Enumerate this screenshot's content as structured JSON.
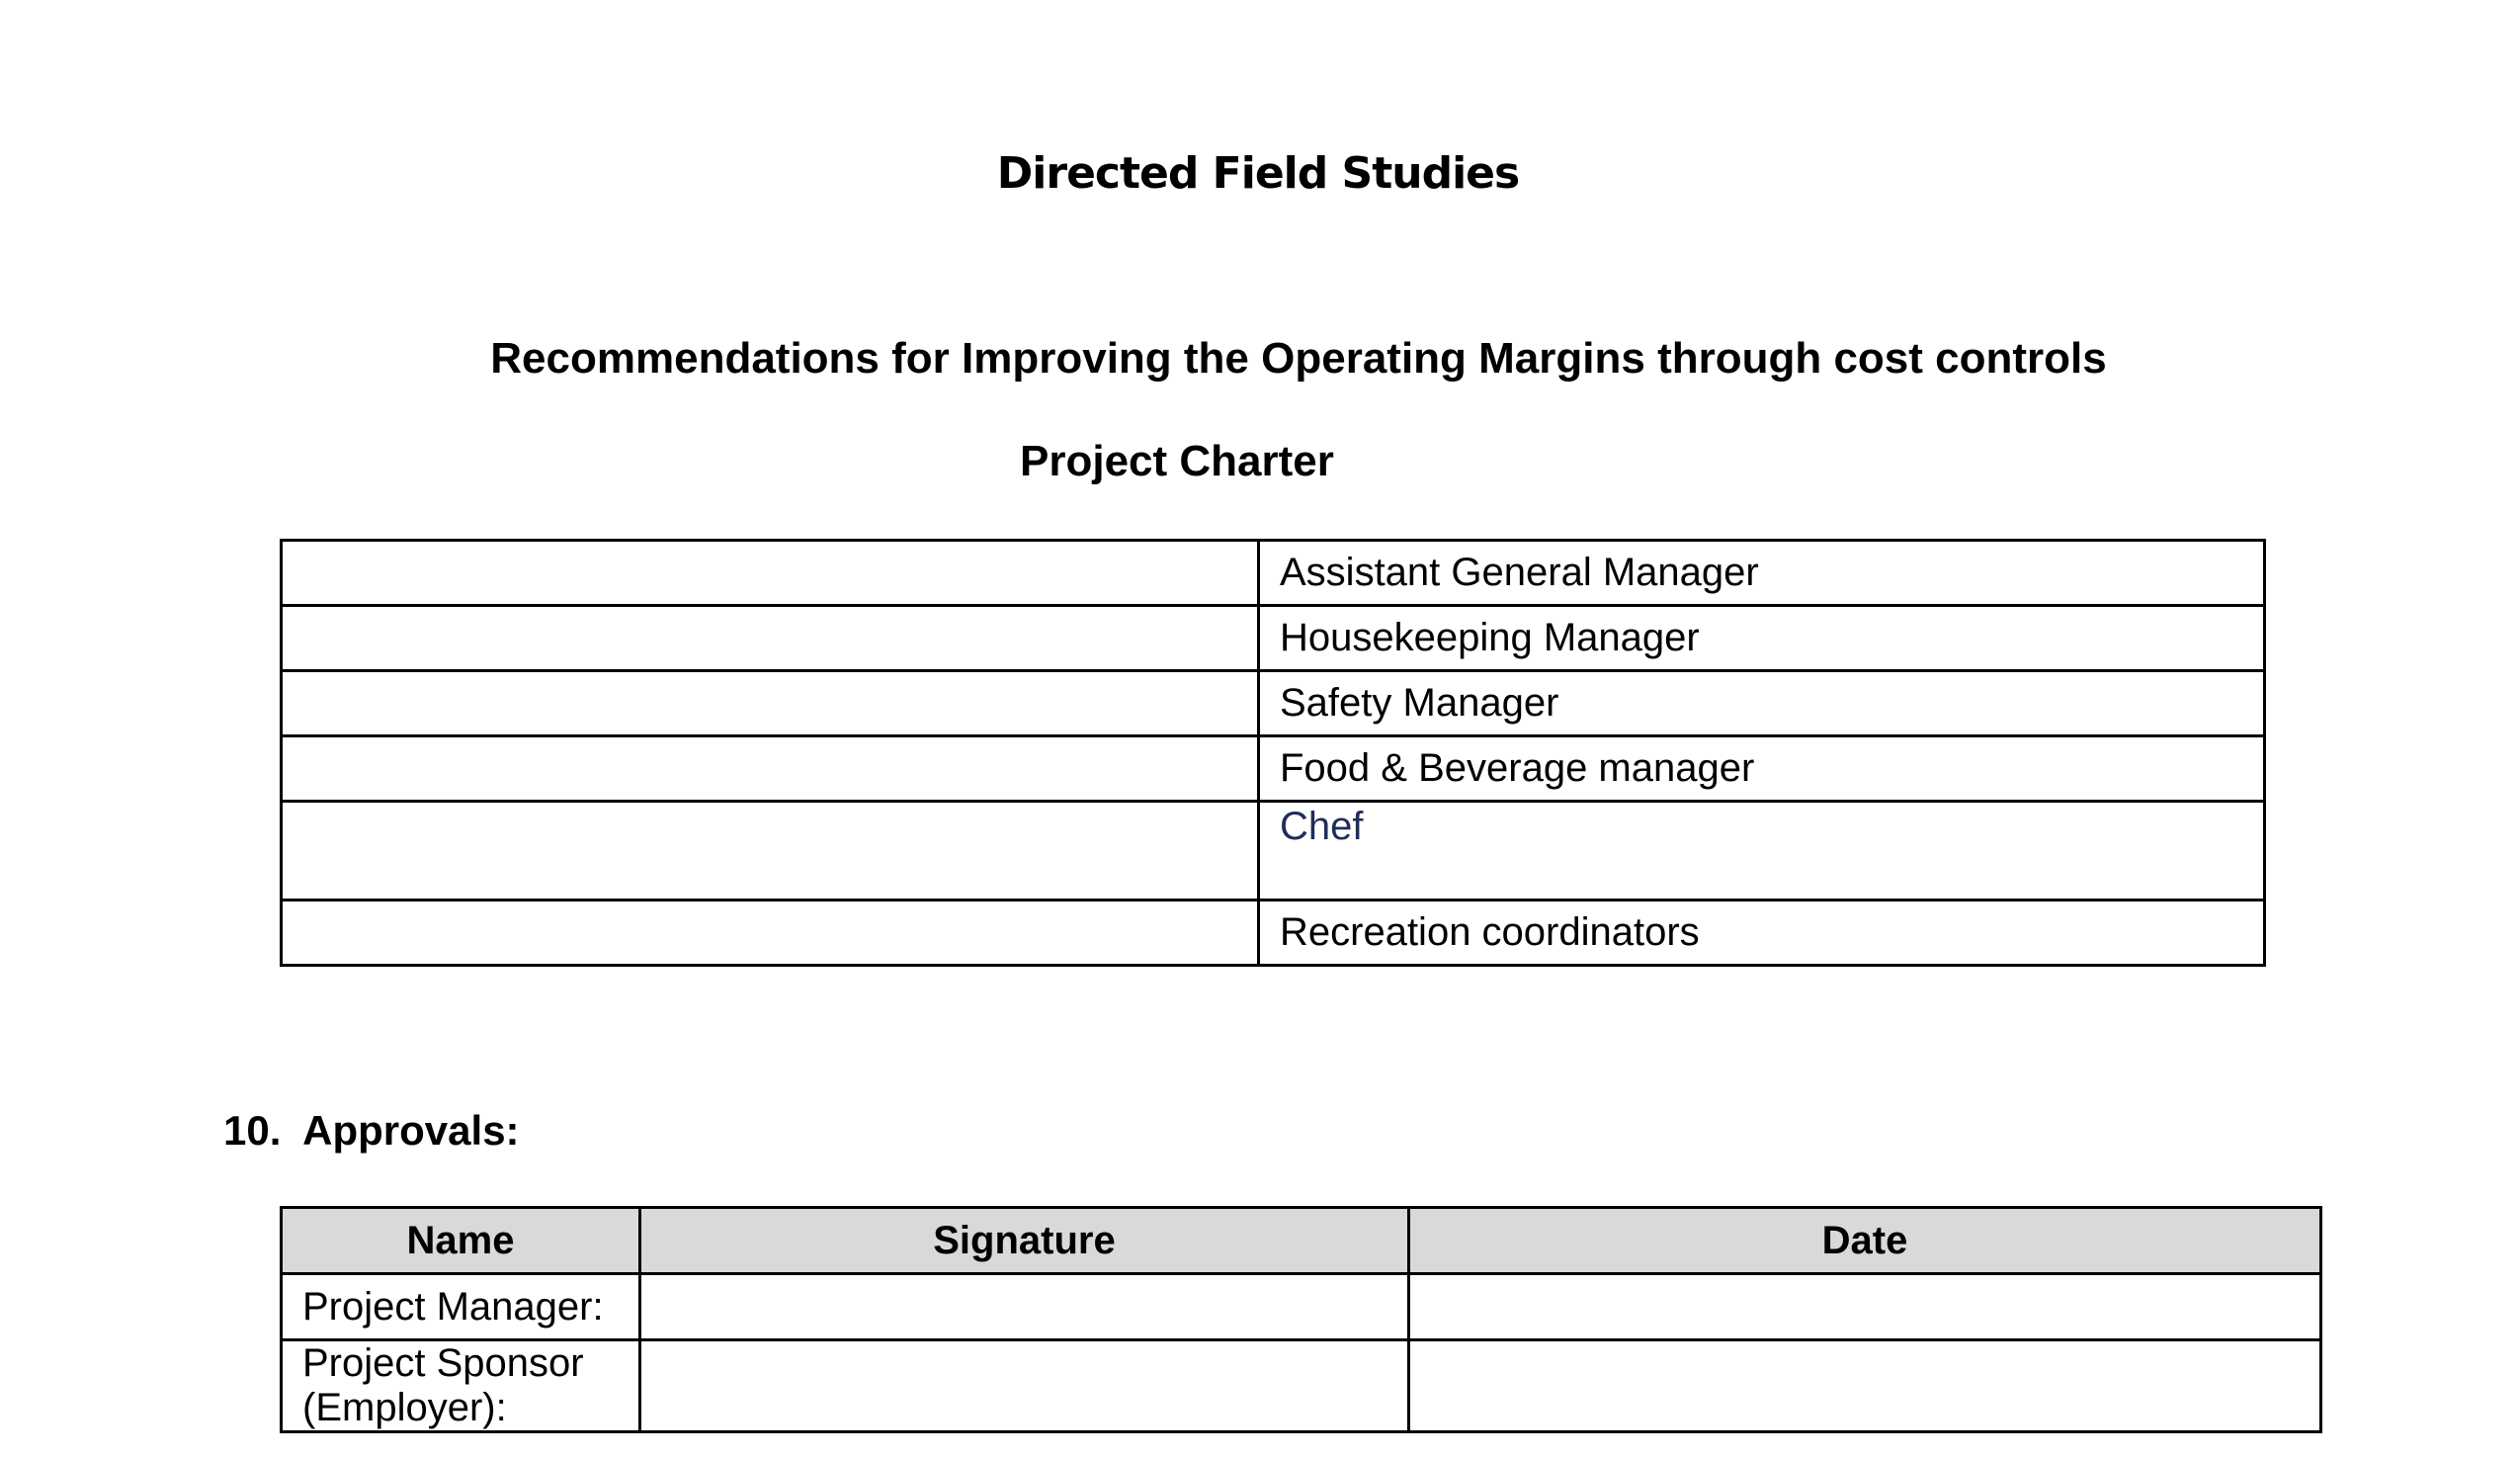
{
  "document": {
    "title": "Directed Field Studies",
    "subtitle": "Recommendations for Improving the Operating Margins through cost controls",
    "charter_title": "Project Charter"
  },
  "roles_table": {
    "rows": [
      {
        "left": "",
        "right": "Assistant General Manager"
      },
      {
        "left": "",
        "right": "Housekeeping Manager"
      },
      {
        "left": "",
        "right": "Safety Manager"
      },
      {
        "left": "",
        "right": "Food & Beverage manager"
      },
      {
        "left": "",
        "right": "Chef"
      },
      {
        "left": "",
        "right": "Recreation coordinators"
      }
    ]
  },
  "approvals": {
    "heading": "10.  Approvals:",
    "headers": [
      "Name",
      "Signature",
      "Date"
    ],
    "rows": [
      {
        "name": "Project Manager:",
        "signature": "",
        "date": ""
      },
      {
        "name": "Project Sponsor (Employer):",
        "signature": "",
        "date": ""
      }
    ],
    "header_bg": "#d9d9d9"
  },
  "colors": {
    "chef_text": "#1f2d5a"
  }
}
